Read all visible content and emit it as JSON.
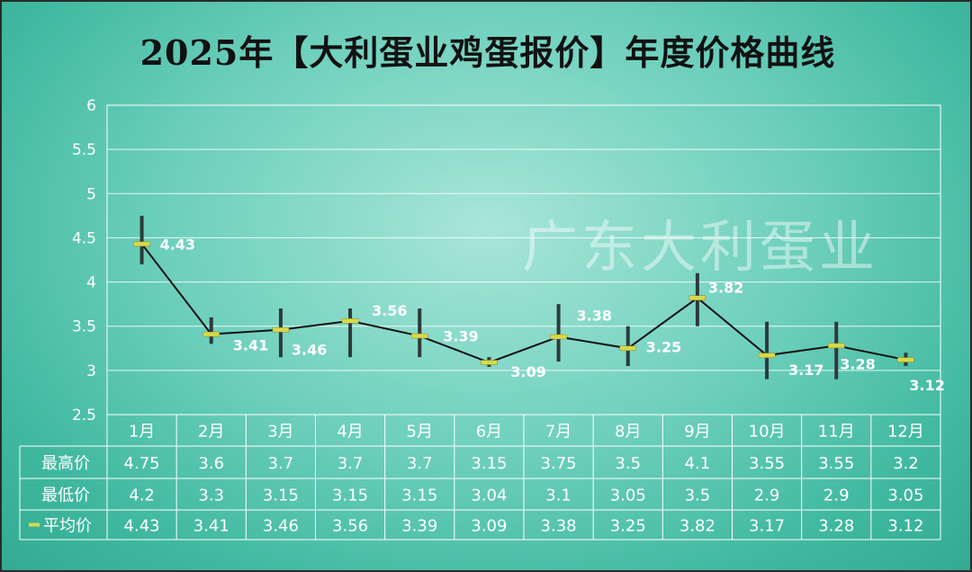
{
  "title": "2025年【大利蛋业鸡蛋报价】年度价格曲线",
  "watermark": "广东大利蛋业",
  "colors": {
    "line": "#111111",
    "range_bar": "#2d3a3a",
    "avg_marker": "#d9d94a",
    "grid": "#ffffff",
    "text": "#ffffff"
  },
  "chart_data": {
    "type": "line",
    "categories": [
      "1月",
      "2月",
      "3月",
      "4月",
      "5月",
      "6月",
      "7月",
      "8月",
      "9月",
      "10月",
      "11月",
      "12月"
    ],
    "series": [
      {
        "name": "最高价",
        "values": [
          4.75,
          3.6,
          3.7,
          3.7,
          3.7,
          3.15,
          3.75,
          3.5,
          4.1,
          3.55,
          3.55,
          3.2
        ]
      },
      {
        "name": "最低价",
        "values": [
          4.2,
          3.3,
          3.15,
          3.15,
          3.15,
          3.04,
          3.1,
          3.05,
          3.5,
          2.9,
          2.9,
          3.05
        ]
      },
      {
        "name": "平均价",
        "values": [
          4.43,
          3.41,
          3.46,
          3.56,
          3.39,
          3.09,
          3.38,
          3.25,
          3.82,
          3.17,
          3.28,
          3.12
        ]
      }
    ],
    "data_labels": [
      "4.43",
      "3.41",
      "3.46",
      "3.56",
      "3.39",
      "3.09",
      "3.38",
      "3.25",
      "3.82",
      "3.17",
      "3.28",
      "3.12"
    ],
    "y_ticks": [
      "2.5",
      "3",
      "3.5",
      "4",
      "4.5",
      "5",
      "5.5",
      "6"
    ],
    "ylim": [
      2.5,
      6
    ],
    "grid": true,
    "legend": "data-table",
    "table": {
      "rows": [
        {
          "label": "最高价",
          "cells": [
            "4.75",
            "3.6",
            "3.7",
            "3.7",
            "3.7",
            "3.15",
            "3.75",
            "3.5",
            "4.1",
            "3.55",
            "3.55",
            "3.2"
          ]
        },
        {
          "label": "最低价",
          "cells": [
            "4.2",
            "3.3",
            "3.15",
            "3.15",
            "3.15",
            "3.04",
            "3.1",
            "3.05",
            "3.5",
            "2.9",
            "2.9",
            "3.05"
          ]
        },
        {
          "label": "平均价",
          "cells": [
            "4.43",
            "3.41",
            "3.46",
            "3.56",
            "3.39",
            "3.09",
            "3.38",
            "3.25",
            "3.82",
            "3.17",
            "3.28",
            "3.12"
          ]
        }
      ]
    }
  }
}
